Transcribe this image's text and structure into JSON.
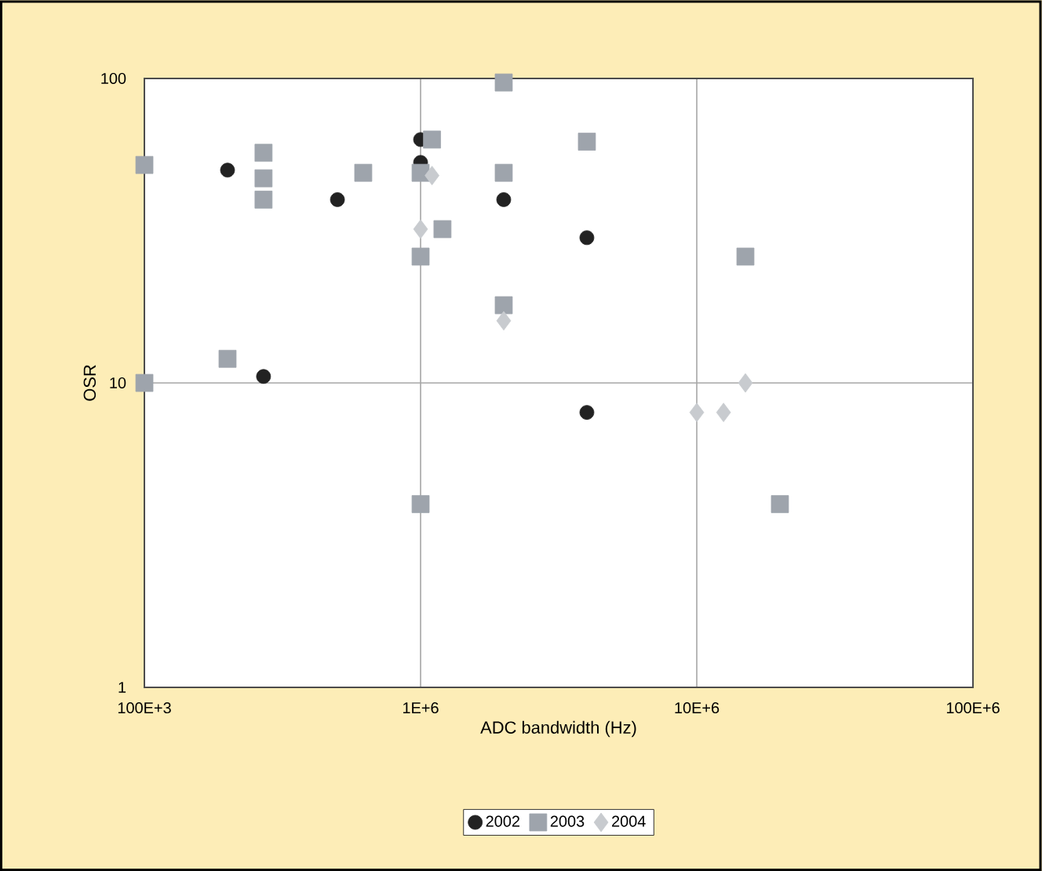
{
  "chart_data": {
    "type": "scatter",
    "xlabel": "ADC bandwidth (Hz)",
    "ylabel": "OSR",
    "log": "xy",
    "xlim": [
      100000,
      100000000
    ],
    "ylim": [
      1,
      100
    ],
    "xticks": [
      {
        "value": 100000,
        "label": "100E+3"
      },
      {
        "value": 1000000,
        "label": "1E+6"
      },
      {
        "value": 10000000,
        "label": "10E+6"
      },
      {
        "value": 100000000,
        "label": "100E+6"
      }
    ],
    "yticks": [
      1,
      10,
      100
    ],
    "grid": true,
    "legend": "bottom",
    "series": [
      {
        "name": "2002",
        "color": "#222222",
        "marker": "circle",
        "x": [
          200000,
          270000,
          500000,
          1000000,
          1000000,
          2000000,
          4000000,
          4000000
        ],
        "values": [
          50,
          10.5,
          40,
          63,
          53,
          40,
          30,
          8
        ]
      },
      {
        "name": "2003",
        "color": "#9ea4ac",
        "marker": "square",
        "x": [
          100000,
          100000,
          200000,
          270000,
          270000,
          270000,
          620000,
          1000000,
          1100000,
          1200000,
          1000000,
          2000000,
          2000000,
          2000000,
          4000000,
          15000000,
          20000000,
          1000000
        ],
        "values": [
          52,
          10,
          12,
          57,
          47,
          40,
          49,
          49,
          63,
          32,
          26,
          97,
          49,
          18,
          62,
          26,
          4,
          4
        ]
      },
      {
        "name": "2004",
        "color": "#c8cbcf",
        "marker": "diamond",
        "x": [
          1100000,
          1000000,
          2000000,
          10000000,
          12500000,
          15000000
        ],
        "values": [
          48,
          32,
          16,
          8,
          8,
          10
        ]
      }
    ]
  }
}
